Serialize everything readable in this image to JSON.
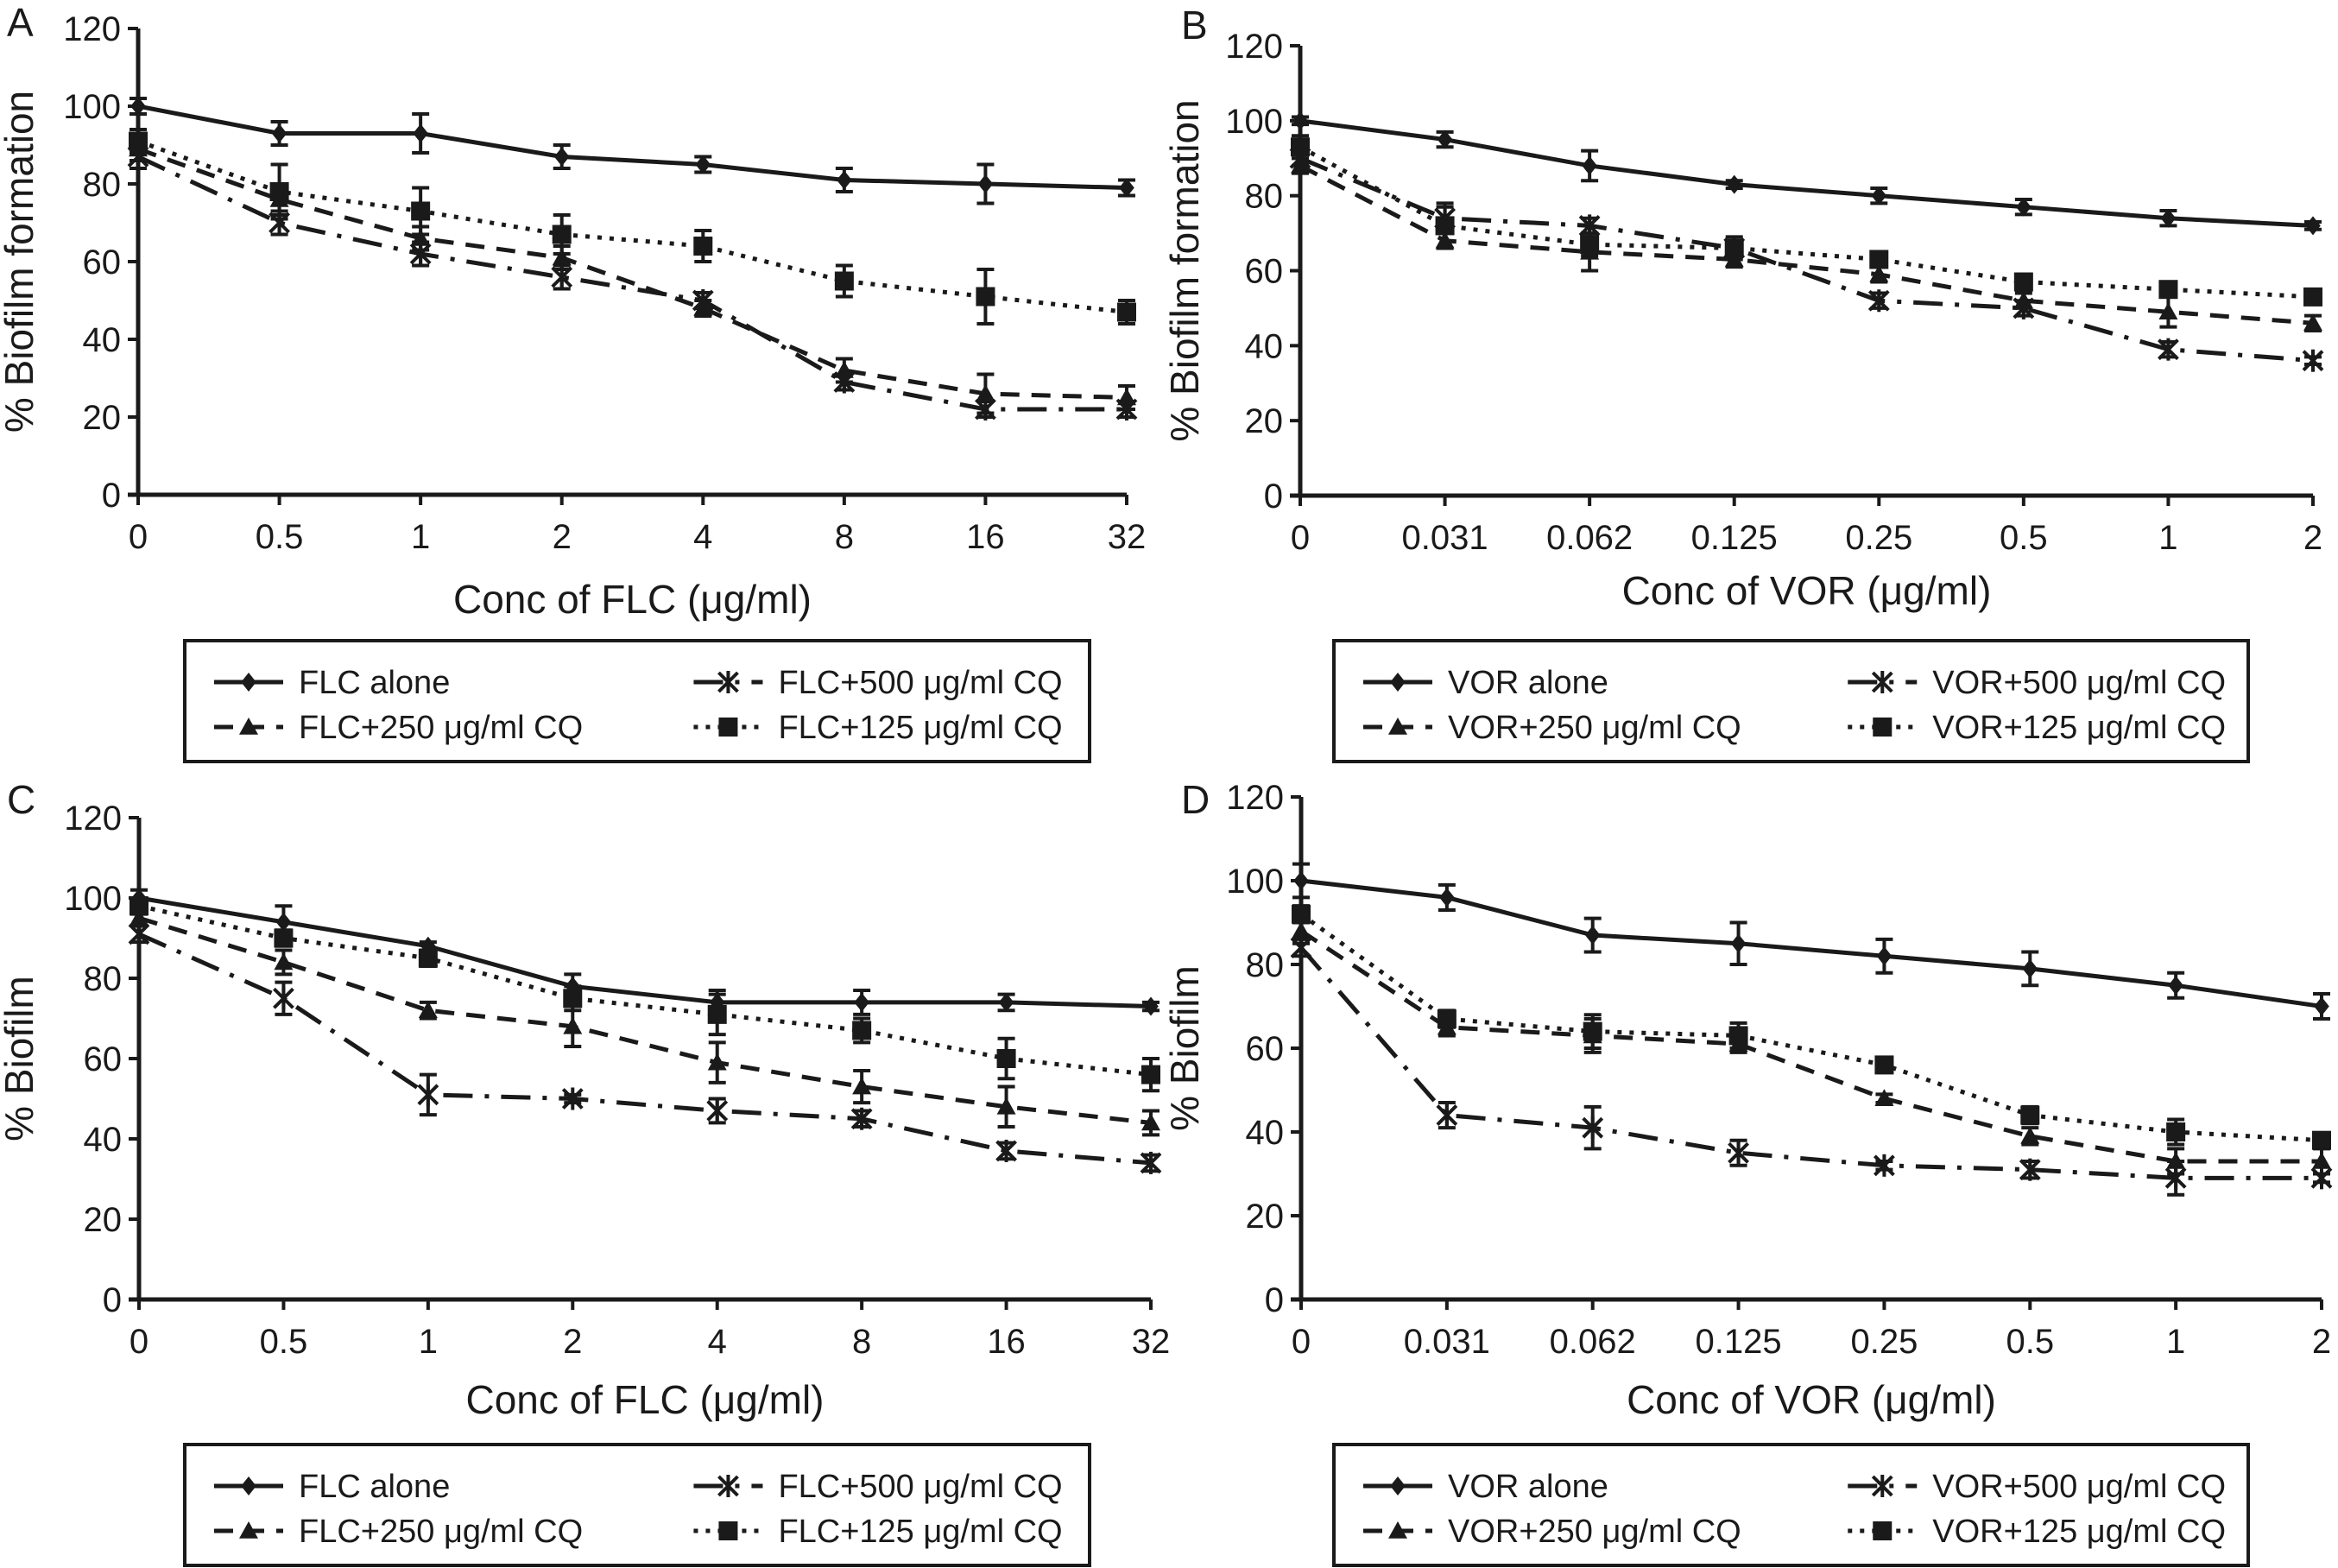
{
  "figure": {
    "legend_position": "below-each-panel"
  },
  "chart_data": [
    {
      "panel": "A",
      "type": "line",
      "xlabel": "Conc of FLC (μg/ml)",
      "ylabel": "% Biofilm formation",
      "categories": [
        "0",
        "0.5",
        "1",
        "2",
        "4",
        "8",
        "16",
        "32"
      ],
      "ylim": [
        0,
        120
      ],
      "yticks": [
        "0",
        "20",
        "40",
        "60",
        "80",
        "100",
        "120"
      ],
      "grid": false,
      "series": [
        {
          "name": "FLC alone",
          "style": "solid",
          "marker": "diamond",
          "values": [
            100,
            93,
            93,
            87,
            85,
            81,
            80,
            79
          ],
          "errors": [
            2,
            3,
            5,
            3,
            2,
            3,
            5,
            2
          ]
        },
        {
          "name": "FLC+250 μg/ml CQ",
          "style": "dashed",
          "marker": "triangle",
          "values": [
            89,
            76,
            66,
            61,
            48,
            32,
            26,
            25
          ],
          "errors": [
            3,
            4,
            3,
            3,
            2,
            3,
            5,
            3
          ]
        },
        {
          "name": "FLC+500 μg/ml CQ",
          "style": "dashdot",
          "marker": "asterisk",
          "values": [
            87,
            70,
            62,
            56,
            50,
            29,
            22,
            22
          ],
          "errors": [
            3,
            3,
            3,
            3,
            2,
            2,
            2,
            2
          ]
        },
        {
          "name": "FLC+125 μg/ml CQ",
          "style": "dotted",
          "marker": "square",
          "values": [
            91,
            78,
            73,
            67,
            64,
            55,
            51,
            47
          ],
          "errors": [
            3,
            7,
            6,
            5,
            4,
            4,
            7,
            3
          ]
        }
      ],
      "legend": [
        {
          "label": "FLC alone",
          "series": 0
        },
        {
          "label": "FLC+500 μg/ml CQ",
          "series": 2
        },
        {
          "label": "FLC+250 μg/ml CQ",
          "series": 1
        },
        {
          "label": "FLC+125 μg/ml CQ",
          "series": 3
        }
      ]
    },
    {
      "panel": "B",
      "type": "line",
      "xlabel": "Conc of VOR (μg/ml)",
      "ylabel": "% Biofilm formation",
      "categories": [
        "0",
        "0.031",
        "0.062",
        "0.125",
        "0.25",
        "0.5",
        "1",
        "2"
      ],
      "ylim": [
        0,
        120
      ],
      "yticks": [
        "0",
        "20",
        "40",
        "60",
        "80",
        "100",
        "120"
      ],
      "grid": false,
      "series": [
        {
          "name": "VOR alone",
          "style": "solid",
          "marker": "diamond",
          "values": [
            100,
            95,
            88,
            83,
            80,
            77,
            74,
            72
          ],
          "errors": [
            1,
            2,
            4,
            1,
            2,
            2,
            2,
            1
          ]
        },
        {
          "name": "VOR+250 μg/ml CQ",
          "style": "dashed",
          "marker": "triangle",
          "values": [
            88,
            68,
            65,
            63,
            59,
            52,
            49,
            46
          ],
          "errors": [
            2,
            2,
            5,
            2,
            2,
            2,
            4,
            2
          ]
        },
        {
          "name": "VOR+500 μg/ml CQ",
          "style": "dashdot",
          "marker": "asterisk",
          "values": [
            90,
            74,
            72,
            66,
            52,
            50,
            39,
            36
          ],
          "errors": [
            2,
            3,
            2,
            2,
            2,
            2,
            2,
            1
          ]
        },
        {
          "name": "VOR+125 μg/ml CQ",
          "style": "dotted",
          "marker": "square",
          "values": [
            93,
            72,
            67,
            66,
            63,
            57,
            55,
            53
          ],
          "errors": [
            3,
            6,
            3,
            3,
            2,
            2,
            2,
            1
          ]
        }
      ],
      "legend": [
        {
          "label": "VOR alone",
          "series": 0
        },
        {
          "label": "VOR+500 μg/ml CQ",
          "series": 2
        },
        {
          "label": "VOR+250 μg/ml CQ",
          "series": 1
        },
        {
          "label": "VOR+125 μg/ml CQ",
          "series": 3
        }
      ]
    },
    {
      "panel": "C",
      "type": "line",
      "xlabel": "Conc of FLC (μg/ml)",
      "ylabel": "% Biofilm",
      "categories": [
        "0",
        "0.5",
        "1",
        "2",
        "4",
        "8",
        "16",
        "32"
      ],
      "ylim": [
        0,
        120
      ],
      "yticks": [
        "0",
        "20",
        "40",
        "60",
        "80",
        "100",
        "120"
      ],
      "grid": false,
      "series": [
        {
          "name": "FLC alone",
          "style": "solid",
          "marker": "diamond",
          "values": [
            100,
            94,
            88,
            78,
            74,
            74,
            74,
            73
          ],
          "errors": [
            2,
            4,
            1,
            3,
            3,
            3,
            2,
            1
          ]
        },
        {
          "name": "FLC+250 μg/ml CQ",
          "style": "dashed",
          "marker": "triangle",
          "values": [
            95,
            84,
            72,
            68,
            59,
            53,
            48,
            44
          ],
          "errors": [
            2,
            3,
            2,
            5,
            5,
            4,
            5,
            3
          ]
        },
        {
          "name": "FLC+500 μg/ml CQ",
          "style": "dashdot",
          "marker": "asterisk",
          "values": [
            91,
            75,
            51,
            50,
            47,
            45,
            37,
            34
          ],
          "errors": [
            2,
            4,
            5,
            1,
            3,
            2,
            2,
            2
          ]
        },
        {
          "name": "FLC+125 μg/ml CQ",
          "style": "dotted",
          "marker": "square",
          "values": [
            98,
            90,
            85,
            75,
            71,
            67,
            60,
            56
          ],
          "errors": [
            2,
            2,
            2,
            3,
            5,
            3,
            5,
            4
          ]
        }
      ],
      "legend": [
        {
          "label": "FLC alone",
          "series": 0
        },
        {
          "label": "FLC+500 μg/ml CQ",
          "series": 2
        },
        {
          "label": "FLC+250 μg/ml CQ",
          "series": 1
        },
        {
          "label": "FLC+125 μg/ml CQ",
          "series": 3
        }
      ]
    },
    {
      "panel": "D",
      "type": "line",
      "xlabel": "Conc of VOR (μg/ml)",
      "ylabel": "% Biofilm",
      "categories": [
        "0",
        "0.031",
        "0.062",
        "0.125",
        "0.25",
        "0.5",
        "1",
        "2"
      ],
      "ylim": [
        0,
        120
      ],
      "yticks": [
        "0",
        "20",
        "40",
        "60",
        "80",
        "100",
        "120"
      ],
      "grid": false,
      "series": [
        {
          "name": "VOR alone",
          "style": "solid",
          "marker": "diamond",
          "values": [
            100,
            96,
            87,
            85,
            82,
            79,
            75,
            70
          ],
          "errors": [
            4,
            3,
            4,
            5,
            4,
            4,
            3,
            3
          ]
        },
        {
          "name": "VOR+250 μg/ml CQ",
          "style": "dashed",
          "marker": "triangle",
          "values": [
            88,
            65,
            63,
            61,
            48,
            39,
            33,
            33
          ],
          "errors": [
            3,
            2,
            4,
            2,
            1,
            2,
            3,
            3
          ]
        },
        {
          "name": "VOR+500 μg/ml CQ",
          "style": "dashdot",
          "marker": "asterisk",
          "values": [
            84,
            44,
            41,
            35,
            32,
            31,
            29,
            29
          ],
          "errors": [
            2,
            3,
            5,
            3,
            1,
            2,
            4,
            1
          ]
        },
        {
          "name": "VOR+125 μg/ml CQ",
          "style": "dotted",
          "marker": "square",
          "values": [
            92,
            67,
            64,
            63,
            56,
            44,
            40,
            38
          ],
          "errors": [
            2,
            2,
            4,
            3,
            1,
            2,
            3,
            1
          ]
        }
      ],
      "legend": [
        {
          "label": "VOR alone",
          "series": 0
        },
        {
          "label": "VOR+500 μg/ml CQ",
          "series": 2
        },
        {
          "label": "VOR+250 μg/ml CQ",
          "series": 1
        },
        {
          "label": "VOR+125 μg/ml CQ",
          "series": 3
        }
      ]
    }
  ]
}
